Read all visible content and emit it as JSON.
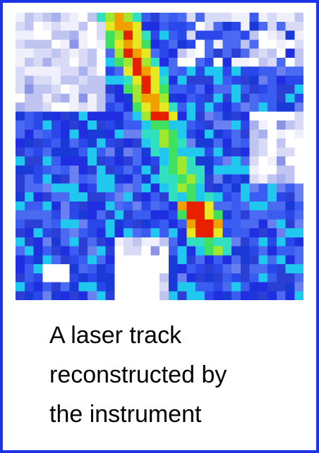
{
  "caption": {
    "lines": [
      "A laser track",
      "reconstructed by",
      "the instrument"
    ]
  }
}
